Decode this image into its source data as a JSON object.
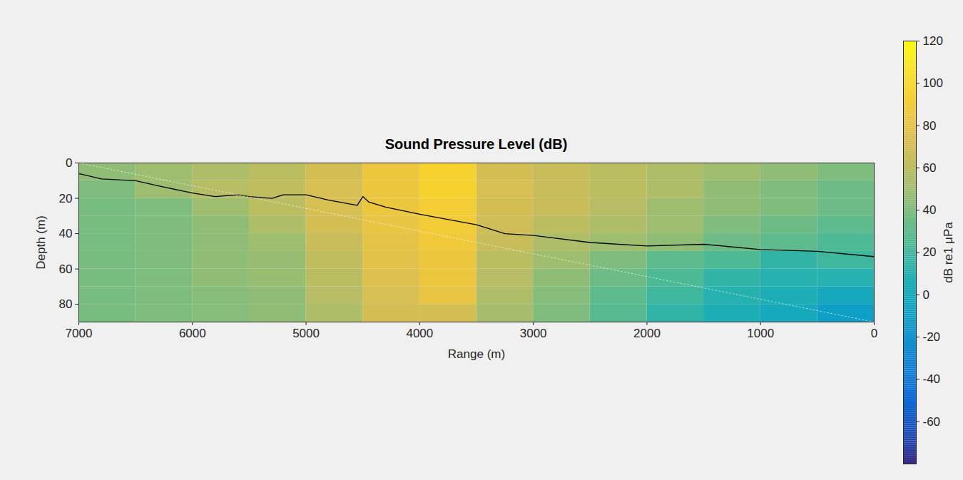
{
  "chart_data": {
    "type": "heatmap",
    "title": "Sound Pressure Level (dB)",
    "x_label": "Range (m)",
    "y_label": "Depth (m)",
    "xlim": [
      7000,
      0
    ],
    "xticks": [
      7000,
      6000,
      5000,
      4000,
      3000,
      2000,
      1000,
      0
    ],
    "ylim": [
      0,
      90
    ],
    "yticks": [
      0,
      20,
      40,
      60,
      80
    ],
    "range_edges": [
      0,
      500,
      1000,
      1500,
      2000,
      2500,
      3000,
      3500,
      4000,
      4500,
      5000,
      5500,
      6000,
      6500,
      7000
    ],
    "depth_edges": [
      0,
      10,
      20,
      30,
      40,
      50,
      60,
      70,
      80,
      90
    ],
    "levels": [
      [
        40,
        45,
        50,
        55,
        60,
        65,
        70,
        95,
        85,
        70,
        60,
        55,
        50,
        45
      ],
      [
        35,
        40,
        45,
        55,
        60,
        65,
        72,
        95,
        85,
        72,
        62,
        58,
        50,
        40
      ],
      [
        35,
        40,
        45,
        50,
        58,
        65,
        70,
        92,
        85,
        72,
        60,
        50,
        40,
        38
      ],
      [
        30,
        35,
        40,
        50,
        55,
        60,
        68,
        90,
        82,
        70,
        55,
        45,
        40,
        38
      ],
      [
        25,
        30,
        35,
        45,
        50,
        55,
        65,
        88,
        80,
        65,
        50,
        45,
        40,
        38
      ],
      [
        20,
        15,
        25,
        30,
        40,
        50,
        60,
        85,
        78,
        62,
        48,
        45,
        40,
        38
      ],
      [
        10,
        10,
        15,
        25,
        35,
        45,
        58,
        85,
        75,
        60,
        48,
        45,
        40,
        38
      ],
      [
        0,
        5,
        10,
        20,
        30,
        42,
        55,
        82,
        72,
        58,
        45,
        42,
        40,
        38
      ],
      [
        -10,
        0,
        5,
        15,
        28,
        40,
        52,
        70,
        70,
        55,
        45,
        42,
        40,
        38
      ]
    ],
    "series": [
      {
        "type": "line",
        "color": "#000000",
        "line_style": "solid",
        "x": [
          7000,
          6800,
          6500,
          6300,
          6000,
          5800,
          5600,
          5500,
          5300,
          5200,
          5000,
          4800,
          4550,
          4500,
          4450,
          4300,
          4000,
          3500,
          3250,
          3000,
          2500,
          2000,
          1500,
          1000,
          500,
          0
        ],
        "values": [
          6,
          9,
          10,
          13,
          17,
          19,
          18,
          19,
          20,
          18,
          18,
          21,
          24,
          19,
          22,
          25,
          29,
          35,
          40,
          41,
          45,
          47,
          46,
          49,
          50,
          53
        ]
      },
      {
        "type": "line",
        "color": "#ffffff",
        "line_style": "dashed",
        "x": [
          7000,
          0
        ],
        "values": [
          0,
          90
        ]
      }
    ],
    "colorbar": {
      "range": [
        -80,
        120
      ],
      "ticks": [
        -60,
        -40,
        -20,
        0,
        20,
        40,
        60,
        80,
        100,
        120
      ],
      "label": "dB re1 μPa"
    }
  }
}
